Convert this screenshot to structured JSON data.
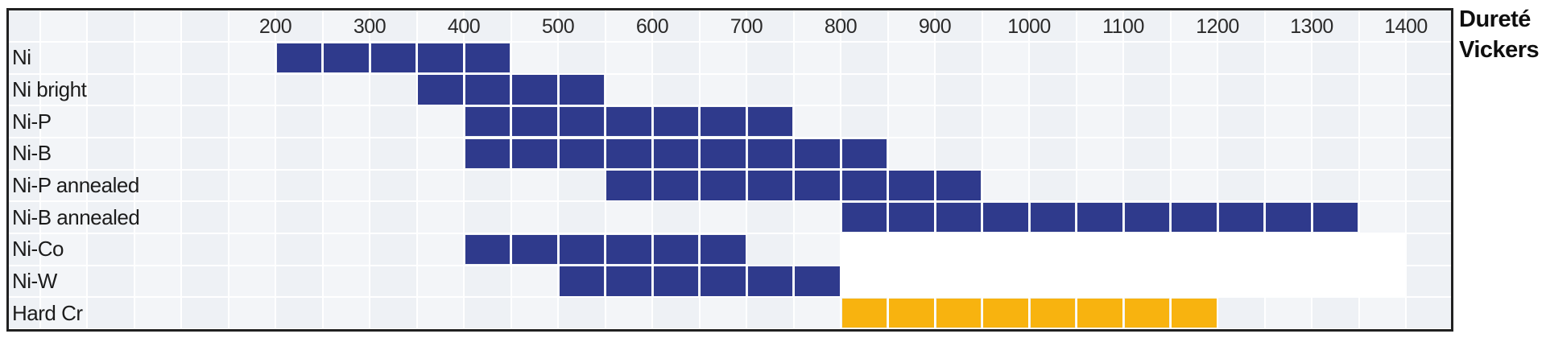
{
  "axis_title": {
    "line1": "Dureté",
    "line2": "Vickers"
  },
  "colors": {
    "blue": "#2F3A8C",
    "orange": "#F8B30F",
    "plot_bg": "#EEF1F5",
    "alt_column": "#F3F5F8",
    "grid_line": "#FFFFFF",
    "border": "#212121",
    "tick_text": "#2a2a2a",
    "label_text": "#1c1c1c"
  },
  "chart_data": {
    "type": "range_bar",
    "title": "",
    "xlabel": "Dureté Vickers",
    "x_axis": {
      "min": 150,
      "max": 1450,
      "tick_step": 100,
      "cell_step": 50,
      "ticks": [
        200,
        300,
        400,
        500,
        600,
        700,
        800,
        900,
        1000,
        1100,
        1200,
        1300,
        1400
      ],
      "grid": true,
      "tick_position": "top"
    },
    "rows": [
      {
        "label": "Ni",
        "start": 200,
        "end": 450,
        "color": "blue"
      },
      {
        "label": "Ni bright",
        "start": 350,
        "end": 550,
        "color": "blue"
      },
      {
        "label": "Ni-P",
        "start": 400,
        "end": 750,
        "color": "blue"
      },
      {
        "label": "Ni-B",
        "start": 400,
        "end": 850,
        "color": "blue"
      },
      {
        "label": "Ni-P annealed",
        "start": 550,
        "end": 950,
        "color": "blue"
      },
      {
        "label": "Ni-B annealed",
        "start": 800,
        "end": 1350,
        "color": "blue"
      },
      {
        "label": "Ni-Co",
        "start": 400,
        "end": 700,
        "color": "blue"
      },
      {
        "label": "Ni-W",
        "start": 500,
        "end": 800,
        "color": "blue"
      },
      {
        "label": "Hard Cr",
        "start": 800,
        "end": 1200,
        "color": "orange"
      }
    ],
    "white_mask": {
      "row_labels": [
        "Ni-Co",
        "Ni-W"
      ],
      "start": 800,
      "end": 1400
    },
    "legend": "none"
  }
}
